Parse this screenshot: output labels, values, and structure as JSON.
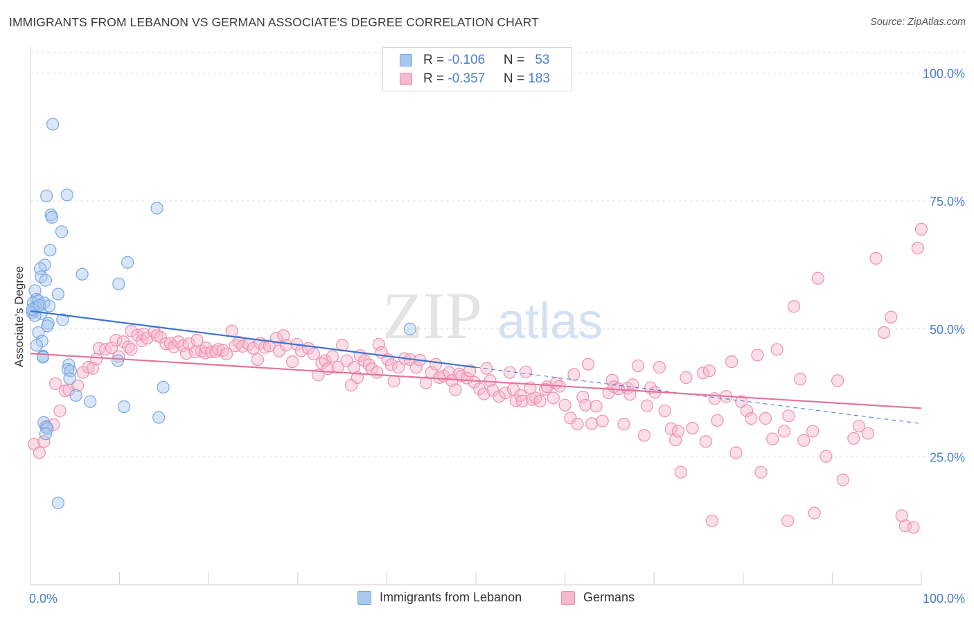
{
  "title": "IMMIGRANTS FROM LEBANON VS GERMAN ASSOCIATE'S DEGREE CORRELATION CHART",
  "source": "Source: ZipAtlas.com",
  "watermark": {
    "zip": "ZIP",
    "atlas": "atlas"
  },
  "legend": {
    "series1": {
      "r_label": "R = ",
      "r_value": "-0.106",
      "n_label": "N = ",
      "n_value": "53"
    },
    "series2": {
      "r_label": "R = ",
      "r_value": "-0.357",
      "n_label": "N = ",
      "n_value": "183"
    }
  },
  "bottom_legend": {
    "series1": "Immigrants from Lebanon",
    "series2": "Germans"
  },
  "colors": {
    "blue_fill": "#a9c8f0",
    "blue_stroke": "#7aa7e0",
    "blue_line": "#3a73d4",
    "pink_fill": "#f6b8cc",
    "pink_stroke": "#ee8fb0",
    "pink_line": "#e7739d",
    "tick_text": "#4a7cd0",
    "grid": "#dddddd"
  },
  "chart_data": {
    "type": "scatter",
    "title": "IMMIGRANTS FROM LEBANON VS GERMAN ASSOCIATE'S DEGREE CORRELATION CHART",
    "xlabel": "",
    "ylabel": "Associate's Degree",
    "xlim": [
      0,
      100
    ],
    "ylim": [
      0,
      104
    ],
    "x_tick_labels": [
      "0.0%",
      "100.0%"
    ],
    "y_ticks": [
      25,
      50,
      75,
      100
    ],
    "y_tick_labels": [
      "25.0%",
      "50.0%",
      "75.0%",
      "100.0%"
    ],
    "grid": true,
    "legend_position": "top-center",
    "series": [
      {
        "name": "Immigrants from Lebanon",
        "color": "#a9c8f0",
        "trend": {
          "x": [
            0,
            50
          ],
          "y": [
            53.5,
            42.5
          ],
          "dashed_extension_to": [
            100,
            31.5
          ]
        },
        "points": [
          [
            2.5,
            90
          ],
          [
            1.8,
            76
          ],
          [
            4.1,
            76.2
          ],
          [
            2.3,
            72.3
          ],
          [
            2.4,
            71.8
          ],
          [
            3.5,
            69
          ],
          [
            14.2,
            73.6
          ],
          [
            2.2,
            65.4
          ],
          [
            10.9,
            63
          ],
          [
            1.6,
            62.5
          ],
          [
            1.1,
            61.8
          ],
          [
            1.2,
            60.2
          ],
          [
            5.8,
            60.7
          ],
          [
            1.7,
            59.5
          ],
          [
            9.9,
            58.8
          ],
          [
            0.5,
            57.5
          ],
          [
            3.1,
            56.8
          ],
          [
            0.7,
            55.8
          ],
          [
            0.3,
            55.1
          ],
          [
            0.9,
            55.5
          ],
          [
            1.5,
            55.1
          ],
          [
            2.1,
            54.5
          ],
          [
            0.6,
            54.2
          ],
          [
            0.4,
            53.6
          ],
          [
            0.2,
            53.2
          ],
          [
            1.2,
            53.0
          ],
          [
            0.5,
            52.6
          ],
          [
            3.6,
            51.8
          ],
          [
            2.0,
            51.1
          ],
          [
            1.9,
            50.6
          ],
          [
            0.9,
            49.3
          ],
          [
            42.6,
            50.0
          ],
          [
            1.3,
            47.6
          ],
          [
            0.7,
            46.8
          ],
          [
            1.4,
            44.7
          ],
          [
            1.4,
            44.5
          ],
          [
            9.8,
            43.8
          ],
          [
            4.3,
            43.0
          ],
          [
            4.2,
            42.1
          ],
          [
            4.5,
            41.8
          ],
          [
            4.4,
            40.3
          ],
          [
            5.1,
            37.0
          ],
          [
            14.9,
            38.6
          ],
          [
            6.7,
            35.8
          ],
          [
            10.5,
            34.8
          ],
          [
            14.4,
            32.7
          ],
          [
            1.5,
            31.7
          ],
          [
            1.8,
            30.8
          ],
          [
            1.9,
            30.5
          ],
          [
            1.7,
            29.5
          ],
          [
            3.1,
            16.0
          ],
          [
            0.2,
            53.8
          ],
          [
            1.0,
            54.6
          ]
        ]
      },
      {
        "name": "Germans",
        "color": "#f6b8cc",
        "trend": {
          "x": [
            0,
            100
          ],
          "y": [
            45.2,
            34.5
          ]
        },
        "points": [
          [
            0.4,
            27.5
          ],
          [
            1.0,
            25.8
          ],
          [
            1.5,
            28.0
          ],
          [
            2.6,
            31.3
          ],
          [
            1.7,
            31.0
          ],
          [
            2.8,
            39.3
          ],
          [
            3.3,
            34.0
          ],
          [
            3.9,
            37.9
          ],
          [
            4.3,
            38.1
          ],
          [
            5.3,
            38.9
          ],
          [
            5.9,
            41.5
          ],
          [
            6.5,
            42.5
          ],
          [
            7.0,
            42.3
          ],
          [
            7.4,
            44.1
          ],
          [
            7.7,
            46.2
          ],
          [
            8.4,
            46.0
          ],
          [
            9.1,
            46.3
          ],
          [
            9.6,
            47.8
          ],
          [
            9.9,
            44.6
          ],
          [
            10.4,
            47.5
          ],
          [
            11.0,
            46.5
          ],
          [
            11.3,
            46.0
          ],
          [
            11.3,
            49.6
          ],
          [
            12.0,
            48.8
          ],
          [
            12.5,
            47.7
          ],
          [
            12.7,
            49.0
          ],
          [
            13.1,
            48.2
          ],
          [
            13.9,
            49.4
          ],
          [
            14.2,
            48.7
          ],
          [
            14.6,
            48.4
          ],
          [
            15.2,
            47.1
          ],
          [
            15.7,
            47.2
          ],
          [
            16.1,
            46.5
          ],
          [
            16.6,
            47.5
          ],
          [
            17.1,
            46.7
          ],
          [
            17.5,
            45.2
          ],
          [
            17.8,
            47.1
          ],
          [
            18.5,
            45.5
          ],
          [
            18.7,
            47.8
          ],
          [
            19.2,
            45.7
          ],
          [
            19.6,
            45.3
          ],
          [
            19.7,
            46.3
          ],
          [
            20.3,
            45.5
          ],
          [
            20.8,
            45.6
          ],
          [
            21.1,
            46.0
          ],
          [
            21.6,
            45.8
          ],
          [
            22.0,
            45.1
          ],
          [
            22.6,
            49.6
          ],
          [
            23.0,
            46.7
          ],
          [
            23.4,
            47.4
          ],
          [
            23.8,
            46.6
          ],
          [
            24.5,
            47.0
          ],
          [
            25.0,
            46.2
          ],
          [
            25.5,
            44.0
          ],
          [
            25.8,
            47.2
          ],
          [
            26.3,
            46.4
          ],
          [
            26.8,
            46.7
          ],
          [
            27.6,
            48.2
          ],
          [
            27.9,
            45.7
          ],
          [
            28.4,
            48.7
          ],
          [
            28.7,
            46.8
          ],
          [
            29.4,
            43.6
          ],
          [
            29.9,
            47.0
          ],
          [
            30.4,
            45.7
          ],
          [
            31.2,
            46.2
          ],
          [
            31.8,
            45.1
          ],
          [
            32.3,
            41.0
          ],
          [
            32.7,
            43.3
          ],
          [
            33.1,
            43.8
          ],
          [
            33.4,
            42.2
          ],
          [
            33.9,
            44.6
          ],
          [
            34.5,
            42.5
          ],
          [
            35.0,
            46.8
          ],
          [
            35.5,
            43.8
          ],
          [
            36.0,
            39.0
          ],
          [
            36.3,
            42.5
          ],
          [
            36.7,
            40.5
          ],
          [
            37.0,
            44.8
          ],
          [
            37.5,
            43.8
          ],
          [
            38.0,
            43.0
          ],
          [
            38.3,
            42.2
          ],
          [
            38.9,
            41.5
          ],
          [
            39.1,
            47.0
          ],
          [
            39.4,
            45.4
          ],
          [
            40.1,
            44.0
          ],
          [
            40.5,
            43.0
          ],
          [
            40.8,
            39.8
          ],
          [
            41.3,
            42.5
          ],
          [
            42.0,
            44.2
          ],
          [
            42.6,
            44.0
          ],
          [
            43.3,
            42.5
          ],
          [
            43.7,
            43.9
          ],
          [
            44.4,
            39.5
          ],
          [
            45.0,
            41.5
          ],
          [
            45.5,
            43.1
          ],
          [
            45.9,
            40.5
          ],
          [
            46.4,
            40.8
          ],
          [
            47.0,
            41.5
          ],
          [
            47.3,
            39.9
          ],
          [
            47.7,
            38.1
          ],
          [
            48.1,
            41.2
          ],
          [
            48.4,
            40.8
          ],
          [
            49.0,
            40.4
          ],
          [
            49.3,
            41.8
          ],
          [
            49.8,
            39.6
          ],
          [
            50.4,
            38.3
          ],
          [
            50.9,
            37.3
          ],
          [
            51.2,
            42.3
          ],
          [
            51.6,
            39.9
          ],
          [
            51.9,
            38.0
          ],
          [
            52.6,
            36.8
          ],
          [
            53.3,
            37.5
          ],
          [
            53.8,
            41.5
          ],
          [
            54.2,
            38.2
          ],
          [
            54.5,
            36.0
          ],
          [
            55.0,
            37.0
          ],
          [
            55.2,
            35.9
          ],
          [
            55.6,
            41.6
          ],
          [
            56.1,
            38.5
          ],
          [
            56.3,
            36.2
          ],
          [
            56.7,
            36.5
          ],
          [
            57.2,
            35.9
          ],
          [
            57.8,
            38.2
          ],
          [
            58.0,
            38.7
          ],
          [
            58.7,
            36.5
          ],
          [
            59.0,
            39.4
          ],
          [
            59.4,
            38.8
          ],
          [
            60.0,
            35.1
          ],
          [
            60.6,
            32.6
          ],
          [
            61.0,
            41.1
          ],
          [
            61.4,
            31.4
          ],
          [
            62.0,
            36.7
          ],
          [
            62.3,
            35.1
          ],
          [
            62.6,
            43.1
          ],
          [
            63.0,
            31.5
          ],
          [
            63.5,
            34.9
          ],
          [
            64.2,
            32.0
          ],
          [
            64.9,
            37.5
          ],
          [
            65.3,
            40.0
          ],
          [
            65.5,
            38.7
          ],
          [
            66.0,
            38.3
          ],
          [
            66.6,
            31.4
          ],
          [
            67.0,
            38.4
          ],
          [
            67.3,
            37.2
          ],
          [
            67.6,
            39.1
          ],
          [
            68.2,
            42.8
          ],
          [
            68.9,
            29.2
          ],
          [
            69.2,
            35.0
          ],
          [
            69.6,
            38.5
          ],
          [
            70.1,
            37.6
          ],
          [
            70.6,
            42.5
          ],
          [
            71.2,
            34.0
          ],
          [
            71.9,
            30.5
          ],
          [
            72.4,
            28.3
          ],
          [
            72.7,
            30.0
          ],
          [
            73.6,
            40.5
          ],
          [
            74.3,
            30.6
          ],
          [
            75.5,
            41.4
          ],
          [
            75.8,
            28.0
          ],
          [
            76.2,
            41.8
          ],
          [
            76.8,
            36.4
          ],
          [
            77.1,
            32.1
          ],
          [
            78.1,
            36.8
          ],
          [
            78.7,
            43.6
          ],
          [
            79.2,
            25.8
          ],
          [
            79.8,
            35.8
          ],
          [
            80.4,
            34.0
          ],
          [
            80.9,
            32.5
          ],
          [
            81.6,
            44.9
          ],
          [
            82.5,
            32.5
          ],
          [
            83.3,
            28.5
          ],
          [
            83.8,
            46.0
          ],
          [
            84.6,
            30.0
          ],
          [
            85.1,
            33.0
          ],
          [
            85.7,
            54.4
          ],
          [
            86.4,
            40.2
          ],
          [
            86.8,
            28.2
          ],
          [
            87.8,
            30.0
          ],
          [
            88.4,
            59.9
          ],
          [
            89.3,
            25.1
          ],
          [
            90.6,
            39.9
          ],
          [
            91.2,
            20.5
          ],
          [
            92.4,
            28.6
          ],
          [
            93.0,
            31.0
          ],
          [
            94.0,
            29.6
          ],
          [
            94.9,
            63.8
          ],
          [
            95.8,
            49.3
          ],
          [
            96.6,
            52.3
          ],
          [
            97.8,
            13.5
          ],
          [
            98.2,
            11.5
          ],
          [
            99.1,
            11.2
          ],
          [
            99.6,
            65.8
          ],
          [
            100.0,
            69.5
          ],
          [
            85.0,
            12.5
          ],
          [
            82.0,
            22.0
          ],
          [
            76.5,
            12.5
          ],
          [
            73.0,
            22.0
          ],
          [
            88.0,
            14.0
          ]
        ]
      }
    ]
  }
}
